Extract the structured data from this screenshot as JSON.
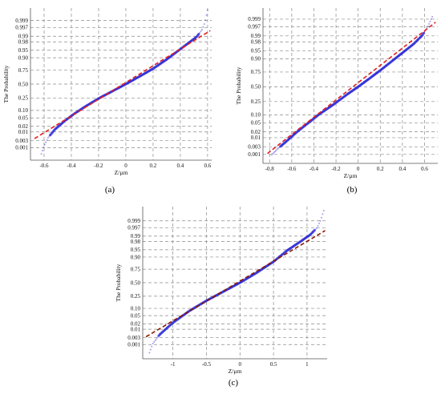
{
  "chart_data": [
    {
      "type": "scatter",
      "panel_label": "(a)",
      "xlabel": "Z/µm",
      "ylabel": "The Probability",
      "xlim": [
        -0.7,
        0.63
      ],
      "x_ticks": [
        -0.6,
        -0.4,
        -0.2,
        0,
        0.2,
        0.4,
        0.6
      ],
      "x_tick_labels": [
        "-0.6",
        "-0.4",
        "-0.2",
        "0",
        "0.2",
        "0.4",
        "0.6"
      ],
      "y_scale": "normal-probability",
      "y_ticks": [
        0.001,
        0.003,
        0.01,
        0.02,
        0.05,
        0.1,
        0.25,
        0.5,
        0.75,
        0.9,
        0.95,
        0.98,
        0.99,
        0.997,
        0.999
      ],
      "y_tick_labels": [
        "0.001",
        "0.003",
        "0.01",
        "0.02",
        "0.05",
        "0.10",
        "0.25",
        "0.50",
        "0.75",
        "0.90",
        "0.95",
        "0.98",
        "0.99",
        "0.997",
        "0.999"
      ],
      "grid": true,
      "series": [
        {
          "kind": "points",
          "color": "#2e2bd6",
          "x": [
            -0.62,
            -0.6,
            -0.57,
            -0.52,
            -0.45,
            -0.38,
            -0.3,
            -0.2,
            -0.1,
            0.0,
            0.1,
            0.2,
            0.3,
            0.38,
            0.45,
            0.52,
            0.56,
            0.58,
            0.6
          ],
          "z": [
            -3.4,
            -3.0,
            -2.6,
            -2.2,
            -1.8,
            -1.45,
            -1.1,
            -0.7,
            -0.35,
            0.0,
            0.37,
            0.75,
            1.2,
            1.6,
            1.95,
            2.3,
            2.65,
            3.0,
            3.6
          ]
        },
        {
          "kind": "reference-line",
          "color": "#e02020",
          "dash": true,
          "x": [
            -0.67,
            0.62
          ],
          "z": [
            -2.65,
            2.6
          ]
        }
      ]
    },
    {
      "type": "scatter",
      "panel_label": "(b)",
      "xlabel": "Z/µm",
      "ylabel": "The Probability",
      "xlim": [
        -0.86,
        0.72
      ],
      "x_ticks": [
        -0.8,
        -0.6,
        -0.4,
        -0.2,
        0,
        0.2,
        0.4,
        0.6
      ],
      "x_tick_labels": [
        "-0.8",
        "-0.6",
        "-0.4",
        "-0.2",
        "0",
        "0.2",
        "0.4",
        "0.6"
      ],
      "y_scale": "normal-probability",
      "y_ticks": [
        0.001,
        0.003,
        0.01,
        0.02,
        0.05,
        0.1,
        0.25,
        0.5,
        0.75,
        0.9,
        0.95,
        0.98,
        0.99,
        0.997,
        0.999
      ],
      "y_tick_labels": [
        "0.001",
        "0.003",
        "0.01",
        "0.02",
        "0.05",
        "0.10",
        "0.25",
        "0.50",
        "0.75",
        "0.90",
        "0.95",
        "0.98",
        "0.99",
        "0.997",
        "0.999"
      ],
      "grid": true,
      "series": [
        {
          "kind": "points",
          "color": "#2e2bd6",
          "x": [
            -0.78,
            -0.72,
            -0.65,
            -0.55,
            -0.45,
            -0.35,
            -0.22,
            -0.1,
            0.0,
            0.1,
            0.2,
            0.3,
            0.4,
            0.5,
            0.58,
            0.63,
            0.67
          ],
          "z": [
            -3.1,
            -2.8,
            -2.5,
            -2.05,
            -1.65,
            -1.25,
            -0.8,
            -0.35,
            0.0,
            0.37,
            0.75,
            1.15,
            1.55,
            1.95,
            2.35,
            2.75,
            3.2
          ]
        },
        {
          "kind": "reference-line",
          "color": "#e02020",
          "dash": true,
          "x": [
            -0.82,
            0.7
          ],
          "z": [
            -3.05,
            2.95
          ]
        }
      ]
    },
    {
      "type": "scatter",
      "panel_label": "(c)",
      "xlabel": "Z/µm",
      "ylabel": "The Probability",
      "xlim": [
        -1.45,
        1.3
      ],
      "x_ticks": [
        -1,
        -0.5,
        0,
        0.5,
        1
      ],
      "x_tick_labels": [
        "-1",
        "-0.5",
        "0",
        "0.5",
        "1"
      ],
      "y_scale": "normal-probability",
      "y_ticks": [
        0.001,
        0.003,
        0.01,
        0.02,
        0.05,
        0.1,
        0.25,
        0.5,
        0.75,
        0.9,
        0.95,
        0.98,
        0.99,
        0.997,
        0.999
      ],
      "y_tick_labels": [
        "0.001",
        "0.003",
        "0.01",
        "0.02",
        "0.05",
        "0.10",
        "0.25",
        "0.50",
        "0.75",
        "0.90",
        "0.95",
        "0.98",
        "0.99",
        "0.997",
        "0.999"
      ],
      "grid": true,
      "series": [
        {
          "kind": "points",
          "color": "#2e2bd6",
          "x": [
            -1.35,
            -1.3,
            -1.2,
            -1.0,
            -0.75,
            -0.5,
            -0.25,
            0.0,
            0.25,
            0.5,
            0.7,
            0.9,
            1.05,
            1.15,
            1.2,
            1.25
          ],
          "z": [
            -3.5,
            -3.05,
            -2.6,
            -2.0,
            -1.4,
            -0.9,
            -0.45,
            0.0,
            0.5,
            1.05,
            1.6,
            2.05,
            2.4,
            2.75,
            3.1,
            3.6
          ]
        },
        {
          "kind": "reference-line",
          "color": "#8b1a00",
          "dash": true,
          "x": [
            -1.4,
            1.27
          ],
          "z": [
            -2.7,
            2.6
          ]
        }
      ]
    }
  ]
}
